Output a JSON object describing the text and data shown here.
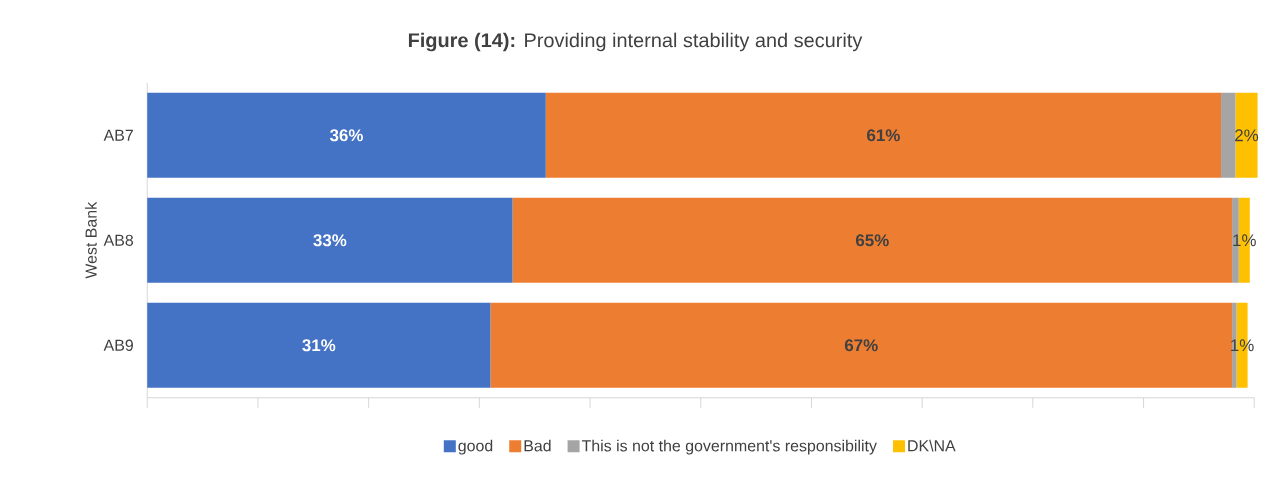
{
  "chart_data": {
    "type": "bar",
    "orientation": "horizontal",
    "stacked": true,
    "title": "**Figure (14):** Providing internal stability and security",
    "ylabel": "West Bank",
    "categories": [
      "AB7",
      "AB8",
      "AB9"
    ],
    "xlim": [
      0,
      100
    ],
    "xticks": [
      {
        "value": 0,
        "label": null
      },
      {
        "value": 10,
        "label": null
      },
      {
        "value": 20,
        "label": null
      },
      {
        "value": 30,
        "label": null
      },
      {
        "value": 40,
        "label": null
      },
      {
        "value": 50,
        "label": null
      },
      {
        "value": 60,
        "label": null
      },
      {
        "value": 70,
        "label": null
      },
      {
        "value": 80,
        "label": null
      },
      {
        "value": 90,
        "label": null
      },
      {
        "value": 100,
        "label": null
      }
    ],
    "tick_labels": "y",
    "legend": "bottom",
    "grid": false,
    "series": [
      {
        "name": "good",
        "color": "#4472c4",
        "values": [
          36,
          33,
          31
        ],
        "value_labels": [
          "36%",
          "33%",
          "31%"
        ]
      },
      {
        "name": "Bad",
        "color": "#ed7d31",
        "values": [
          61,
          65,
          67
        ],
        "value_labels": [
          "61%",
          "65%",
          "67%"
        ]
      },
      {
        "name": "This is not the government's responsibility",
        "color": "#a5a5a5",
        "values": [
          1.3,
          0.6,
          0.4
        ],
        "value_labels": [
          null,
          null,
          null
        ]
      },
      {
        "name": "DK\\NA",
        "color": "#ffc000",
        "values": [
          2,
          1,
          1
        ],
        "value_labels": [
          "2%",
          "1%",
          "1%"
        ]
      }
    ]
  }
}
